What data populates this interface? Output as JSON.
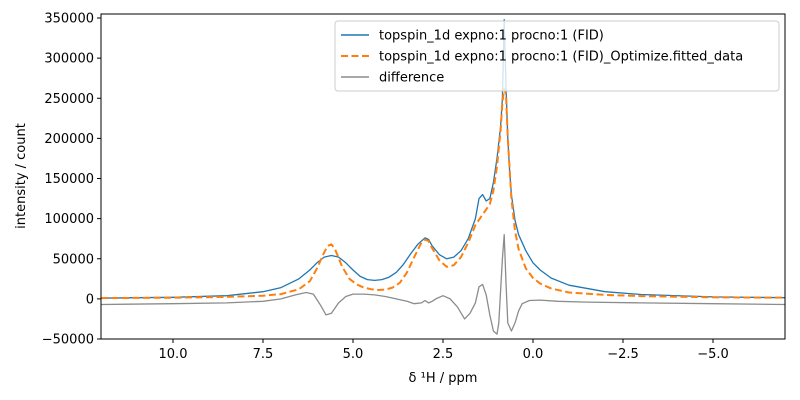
{
  "chart_data": {
    "type": "line",
    "title": "",
    "xlabel": "δ ¹H / ppm",
    "ylabel": "intensity / count",
    "xlim": [
      12.0,
      -7.0
    ],
    "ylim": [
      -50000,
      355000
    ],
    "x_reversed": true,
    "x_ticks": [
      10.0,
      7.5,
      5.0,
      2.5,
      0.0,
      -2.5,
      -5.0
    ],
    "x_tick_labels": [
      "10.0",
      "7.5",
      "5.0",
      "2.5",
      "0.0",
      "−2.5",
      "−5.0"
    ],
    "y_ticks": [
      -50000,
      0,
      50000,
      100000,
      150000,
      200000,
      250000,
      300000,
      350000
    ],
    "y_tick_labels": [
      "−50000",
      "0",
      "50000",
      "100000",
      "150000",
      "200000",
      "250000",
      "300000",
      "350000"
    ],
    "grid": false,
    "legend_position": "top-right",
    "series": [
      {
        "name": "topspin_1d expno:1 procno:1 (FID)",
        "color": "#1f77b4",
        "style": "solid",
        "x": [
          12.0,
          10.0,
          8.5,
          7.5,
          7.0,
          6.5,
          6.2,
          6.0,
          5.8,
          5.6,
          5.4,
          5.2,
          5.0,
          4.8,
          4.6,
          4.4,
          4.2,
          4.0,
          3.8,
          3.6,
          3.4,
          3.2,
          3.0,
          2.9,
          2.8,
          2.6,
          2.4,
          2.2,
          2.0,
          1.8,
          1.6,
          1.5,
          1.4,
          1.3,
          1.2,
          1.1,
          1.0,
          0.9,
          0.85,
          0.8,
          0.75,
          0.7,
          0.65,
          0.6,
          0.5,
          0.4,
          0.2,
          0.0,
          -0.2,
          -0.5,
          -1.0,
          -2.0,
          -3.0,
          -5.0,
          -7.0
        ],
        "y": [
          1000,
          2000,
          4000,
          9000,
          14000,
          25000,
          36000,
          45000,
          52000,
          54000,
          52000,
          45000,
          36000,
          28000,
          24000,
          23000,
          24000,
          27000,
          33000,
          43000,
          56000,
          68000,
          76000,
          74000,
          66000,
          55000,
          50000,
          52000,
          60000,
          75000,
          100000,
          125000,
          130000,
          122000,
          125000,
          145000,
          175000,
          215000,
          250000,
          348000,
          265000,
          200000,
          160000,
          130000,
          98000,
          80000,
          60000,
          45000,
          36000,
          26000,
          17000,
          9000,
          5500,
          2500,
          1500
        ]
      },
      {
        "name": "topspin_1d expno:1 procno:1 (FID)_Optimize.fitted_data",
        "color": "#ff7f0e",
        "style": "dashed",
        "x": [
          12.0,
          10.0,
          8.5,
          7.5,
          7.0,
          6.5,
          6.2,
          6.0,
          5.8,
          5.7,
          5.6,
          5.5,
          5.3,
          5.1,
          4.9,
          4.7,
          4.5,
          4.3,
          4.1,
          3.9,
          3.7,
          3.5,
          3.3,
          3.1,
          3.0,
          2.9,
          2.8,
          2.6,
          2.4,
          2.2,
          2.0,
          1.8,
          1.6,
          1.4,
          1.2,
          1.1,
          1.0,
          0.9,
          0.85,
          0.8,
          0.75,
          0.7,
          0.6,
          0.5,
          0.4,
          0.2,
          0.0,
          -0.2,
          -0.5,
          -1.0,
          -2.0,
          -3.0,
          -5.0,
          -7.0
        ],
        "y": [
          1000,
          1500,
          2500,
          4000,
          6000,
          12000,
          22000,
          38000,
          58000,
          66000,
          68000,
          62000,
          40000,
          25000,
          18000,
          14000,
          12000,
          11000,
          11500,
          14000,
          20000,
          33000,
          52000,
          70000,
          74000,
          72000,
          63000,
          48000,
          40000,
          42000,
          52000,
          70000,
          92000,
          105000,
          118000,
          135000,
          165000,
          210000,
          245000,
          262000,
          255000,
          200000,
          125000,
          85000,
          62000,
          38000,
          26000,
          19000,
          13000,
          8000,
          5000,
          3500,
          2000,
          1500
        ]
      },
      {
        "name": "difference",
        "color": "#8c8c8c",
        "style": "solid",
        "x": [
          12.0,
          10.0,
          8.5,
          7.5,
          7.0,
          6.6,
          6.3,
          6.1,
          5.9,
          5.75,
          5.6,
          5.4,
          5.2,
          5.0,
          4.7,
          4.4,
          4.1,
          3.8,
          3.5,
          3.3,
          3.1,
          3.0,
          2.9,
          2.8,
          2.7,
          2.5,
          2.3,
          2.1,
          1.9,
          1.75,
          1.6,
          1.5,
          1.4,
          1.3,
          1.2,
          1.1,
          1.0,
          0.95,
          0.9,
          0.85,
          0.8,
          0.75,
          0.7,
          0.6,
          0.5,
          0.4,
          0.3,
          0.1,
          -0.2,
          -0.7,
          -1.5,
          -3.0,
          -5.0,
          -7.0
        ],
        "y": [
          -7000,
          -6000,
          -5000,
          -3000,
          0,
          5000,
          8000,
          6000,
          -8000,
          -20000,
          -18000,
          -5000,
          3000,
          6000,
          6000,
          5000,
          3000,
          0,
          -3000,
          -6000,
          -5000,
          -2000,
          -5000,
          -3000,
          0,
          4000,
          0,
          -10000,
          -25000,
          -18000,
          -5000,
          15000,
          18000,
          5000,
          -20000,
          -40000,
          -44000,
          -30000,
          10000,
          50000,
          80000,
          20000,
          -30000,
          -40000,
          -30000,
          -15000,
          -6000,
          -2000,
          -1500,
          -3000,
          -4000,
          -5000,
          -6000,
          -7000
        ]
      }
    ]
  }
}
